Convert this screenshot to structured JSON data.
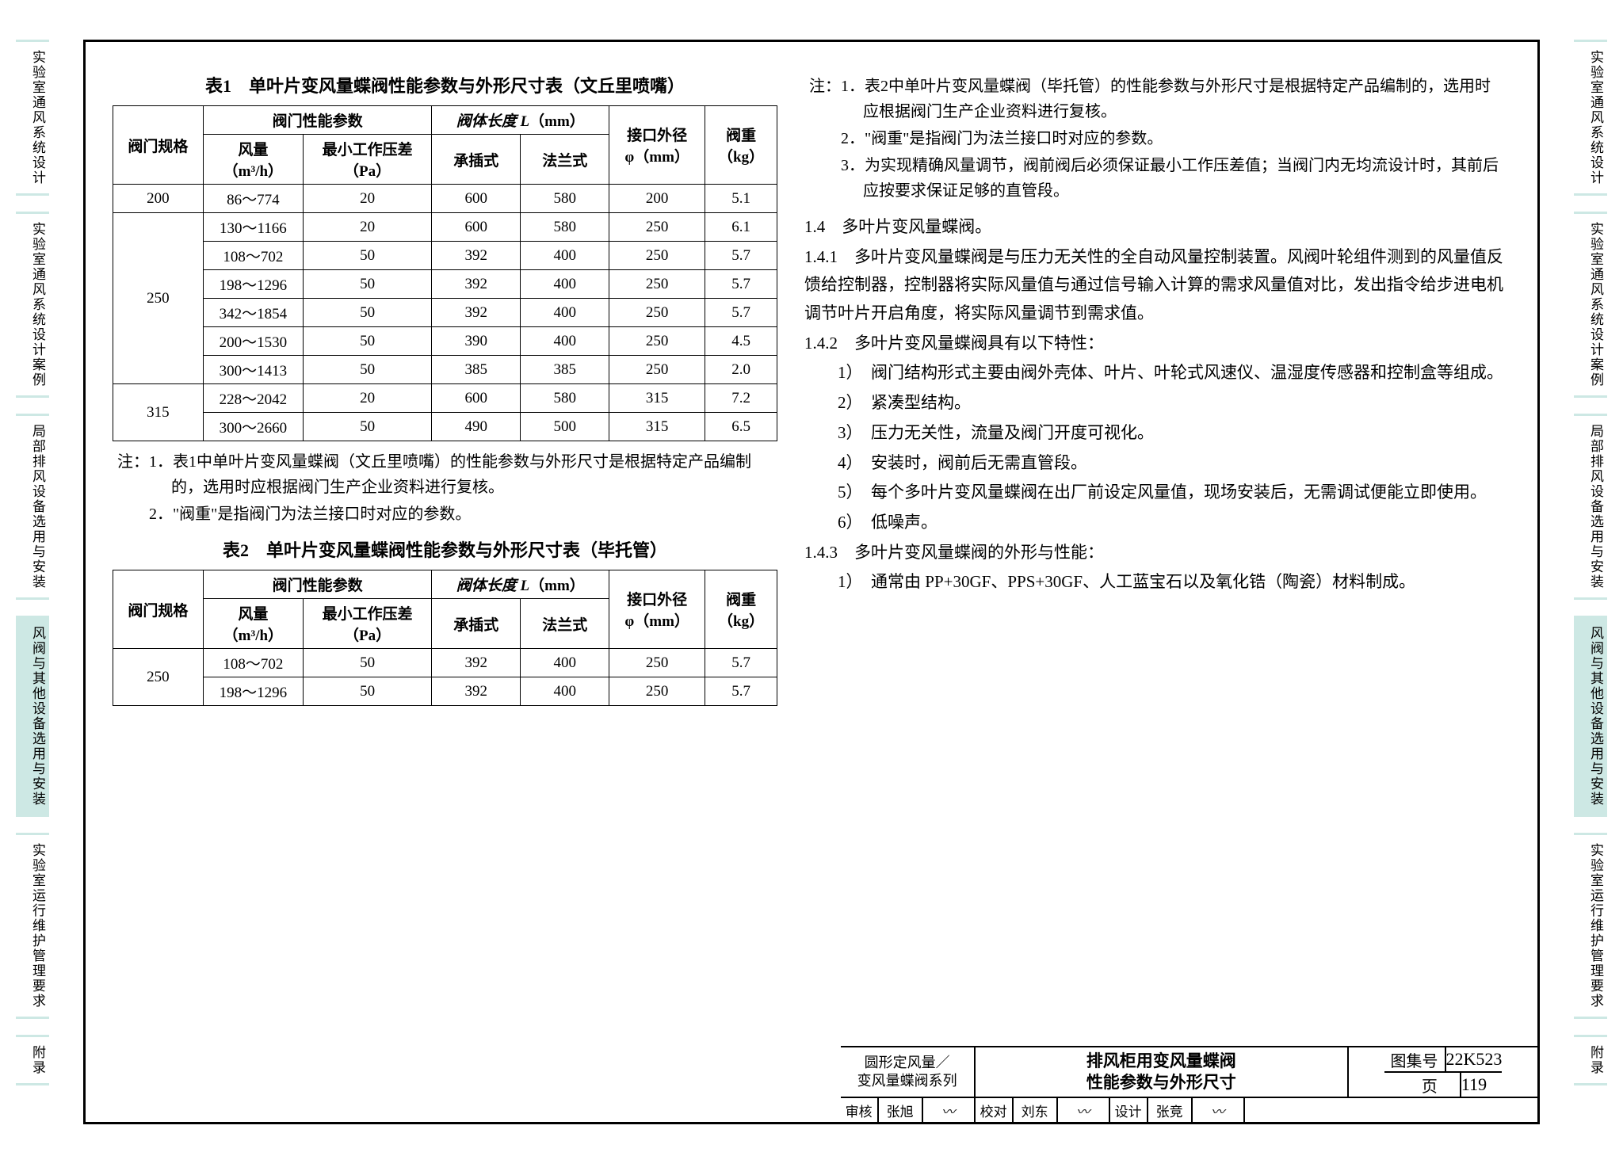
{
  "side_tabs": [
    {
      "label": "实验室通风系统设计",
      "active": false
    },
    {
      "label": "实验室通风系统设计案例",
      "active": false
    },
    {
      "label": "局部排风设备选用与安装",
      "active": false
    },
    {
      "label": "风阀与其他设备选用与安装",
      "active": true
    },
    {
      "label": "实验室运行维护管理要求",
      "active": false
    },
    {
      "label": "附录",
      "active": false
    }
  ],
  "table1": {
    "title": "表1　单叶片变风量蝶阀性能参数与外形尺寸表（文丘里喷嘴）",
    "head": {
      "c1": "阀门规格",
      "g1": "阀门性能参数",
      "g2": "阀体长度 L（mm）",
      "c6": "接口外径\nφ（mm）",
      "c7": "阀重\n（kg）",
      "c2": "风量\n（m³/h）",
      "c3": "最小工作压差\n（Pa）",
      "c4": "承插式",
      "c5": "法兰式"
    },
    "groups": [
      {
        "spec": "200",
        "rows": [
          [
            "86～774",
            "20",
            "600",
            "580",
            "200",
            "5.1"
          ]
        ]
      },
      {
        "spec": "250",
        "rows": [
          [
            "130～1166",
            "20",
            "600",
            "580",
            "250",
            "6.1"
          ],
          [
            "108～702",
            "50",
            "392",
            "400",
            "250",
            "5.7"
          ],
          [
            "198～1296",
            "50",
            "392",
            "400",
            "250",
            "5.7"
          ],
          [
            "342～1854",
            "50",
            "392",
            "400",
            "250",
            "5.7"
          ],
          [
            "200～1530",
            "50",
            "390",
            "400",
            "250",
            "4.5"
          ],
          [
            "300～1413",
            "50",
            "385",
            "385",
            "250",
            "2.0"
          ]
        ]
      },
      {
        "spec": "315",
        "rows": [
          [
            "228～2042",
            "20",
            "600",
            "580",
            "315",
            "7.2"
          ],
          [
            "300～2660",
            "50",
            "490",
            "500",
            "315",
            "6.5"
          ]
        ]
      }
    ]
  },
  "notes1": {
    "prefix": "注：",
    "items": [
      "1．表1中单叶片变风量蝶阀（文丘里喷嘴）的性能参数与外形尺寸是根据特定产品编制的，选用时应根据阀门生产企业资料进行复核。",
      "2．\"阀重\"是指阀门为法兰接口时对应的参数。"
    ]
  },
  "table2": {
    "title": "表2　单叶片变风量蝶阀性能参数与外形尺寸表（毕托管）",
    "groups": [
      {
        "spec": "250",
        "rows": [
          [
            "108～702",
            "50",
            "392",
            "400",
            "250",
            "5.7"
          ],
          [
            "198～1296",
            "50",
            "392",
            "400",
            "250",
            "5.7"
          ]
        ]
      }
    ]
  },
  "notes2": {
    "prefix": "注：",
    "items": [
      "1．表2中单叶片变风量蝶阀（毕托管）的性能参数与外形尺寸是根据特定产品编制的，选用时应根据阀门生产企业资料进行复核。",
      "2．\"阀重\"是指阀门为法兰接口时对应的参数。",
      "3．为实现精确风量调节，阀前阀后必须保证最小工作压差值；当阀门内无均流设计时，其前后应按要求保证足够的直管段。"
    ]
  },
  "right_text": [
    {
      "cls": "",
      "t": "1.4　多叶片变风量蝶阀。"
    },
    {
      "cls": "",
      "t": "1.4.1　多叶片变风量蝶阀是与压力无关性的全自动风量控制装置。风阀叶轮组件测到的风量值反馈给控制器，控制器将实际风量值与通过信号输入计算的需求风量值对比，发出指令给步进电机调节叶片开启角度，将实际风量调节到需求值。"
    },
    {
      "cls": "",
      "t": "1.4.2　多叶片变风量蝶阀具有以下特性："
    },
    {
      "cls": "indent",
      "t": "1）　阀门结构形式主要由阀外壳体、叶片、叶轮式风速仪、温湿度传感器和控制盒等组成。"
    },
    {
      "cls": "indent",
      "t": "2）　紧凑型结构。"
    },
    {
      "cls": "indent",
      "t": "3）　压力无关性，流量及阀门开度可视化。"
    },
    {
      "cls": "indent",
      "t": "4）　安装时，阀前后无需直管段。"
    },
    {
      "cls": "indent",
      "t": "5）　每个多叶片变风量蝶阀在出厂前设定风量值，现场安装后，无需调试便能立即使用。"
    },
    {
      "cls": "indent",
      "t": "6）　低噪声。"
    },
    {
      "cls": "",
      "t": "1.4.3　多叶片变风量蝶阀的外形与性能："
    },
    {
      "cls": "indent",
      "t": "1）　通常由 PP+30GF、PPS+30GF、人工蓝宝石以及氧化锆（陶瓷）材料制成。"
    }
  ],
  "title_block": {
    "series": "圆形定风量／\n变风量蝶阀系列",
    "title": "排风柜用变风量蝶阀\n性能参数与外形尺寸",
    "atlas_label": "图集号",
    "atlas_code": "22K523",
    "page_label": "页",
    "page_no": "119",
    "sig_labels": [
      "审核",
      "张旭",
      "",
      "校对",
      "刘东",
      "",
      "设计",
      "张竞",
      ""
    ],
    "widths": [
      48,
      56,
      66,
      48,
      56,
      66,
      48,
      56,
      66
    ]
  }
}
